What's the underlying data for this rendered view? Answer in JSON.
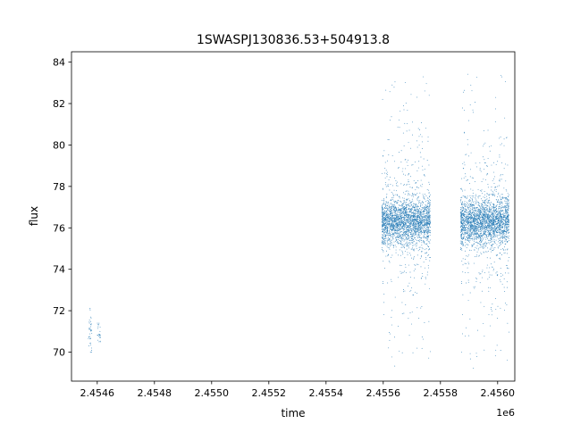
{
  "chart_data": {
    "type": "scatter",
    "title": "1SWASPJ130836.53+504913.8",
    "xlabel": "time",
    "ylabel": "flux",
    "x_offset_label": "1e6",
    "xlim": [
      2.45451,
      2.45606
    ],
    "ylim": [
      68.6,
      84.5
    ],
    "x_ticks": [
      2.4546,
      2.4548,
      2.455,
      2.4552,
      2.4554,
      2.4556,
      2.4558,
      2.456
    ],
    "x_tick_labels": [
      "2.4546",
      "2.4548",
      "2.4550",
      "2.4552",
      "2.4554",
      "2.4556",
      "2.4558",
      "2.4560"
    ],
    "y_ticks": [
      70,
      72,
      74,
      76,
      78,
      80,
      82,
      84
    ],
    "y_tick_labels": [
      "70",
      "72",
      "74",
      "76",
      "78",
      "80",
      "82",
      "84"
    ],
    "grid": false,
    "legend": null,
    "colors": {
      "points": "#1f77b4",
      "axes": "#000000",
      "background": "#ffffff"
    },
    "series": [
      {
        "clusters": [
          {
            "x_center": 2.454575,
            "x_width": 6e-06,
            "y_center": 71.0,
            "y_spread": 0.5,
            "y_min": 70.0,
            "y_max": 72.1,
            "count": 40
          },
          {
            "x_center": 2.454605,
            "x_width": 6e-06,
            "y_center": 70.9,
            "y_spread": 0.3,
            "y_min": 70.5,
            "y_max": 71.4,
            "count": 25
          },
          {
            "x_center": 2.45568,
            "x_width": 8.5e-05,
            "y_center": 76.3,
            "y_spread": 0.55,
            "y_min": 69.3,
            "y_max": 83.5,
            "count": 2600
          },
          {
            "x_center": 2.455955,
            "x_width": 8.5e-05,
            "y_center": 76.3,
            "y_spread": 0.55,
            "y_min": 69.2,
            "y_max": 83.5,
            "count": 2600
          }
        ]
      }
    ]
  }
}
